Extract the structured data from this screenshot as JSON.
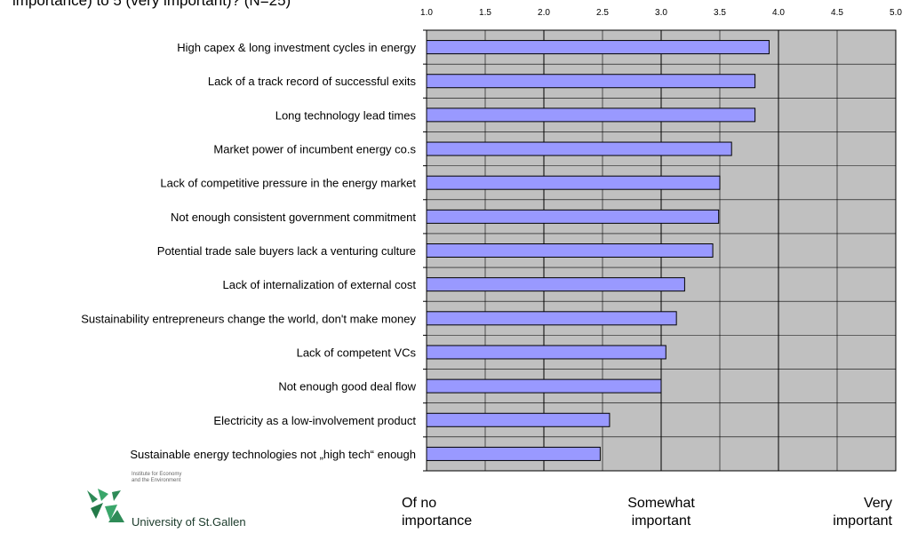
{
  "title_fragment": "importance) to 5 (very important)? (N=25)",
  "chart_data": {
    "type": "bar",
    "orientation": "horizontal",
    "categories": [
      "High capex & long investment cycles in energy",
      "Lack of a track record of successful exits",
      "Long technology lead times",
      "Market power of incumbent energy co.s",
      "Lack of competitive pressure in the energy market",
      "Not enough consistent government commitment",
      "Potential trade sale buyers lack a venturing culture",
      "Lack of internalization of external cost",
      "Sustainability entrepreneurs change the world, don't make money",
      "Lack of competent VCs",
      "Not enough good deal flow",
      "Electricity as a low-involvement product",
      "Sustainable energy technologies not „high tech“ enough"
    ],
    "values": [
      3.92,
      3.8,
      3.8,
      3.6,
      3.5,
      3.49,
      3.44,
      3.2,
      3.13,
      3.04,
      3.0,
      2.56,
      2.48
    ],
    "xlim": [
      1.0,
      5.0
    ],
    "xticks": [
      "1.0",
      "1.5",
      "2.0",
      "2.5",
      "3.0",
      "3.5",
      "4.0",
      "4.5",
      "5.0"
    ],
    "x_axis_position": "top",
    "grid": true,
    "bar_color": "#9999ff",
    "plot_background": "#c0c0c0",
    "scale_labels": [
      {
        "value": 1,
        "lines": [
          "Of no",
          "importance"
        ]
      },
      {
        "value": 3,
        "lines": [
          "Somewhat",
          "important"
        ]
      },
      {
        "value": 5,
        "lines": [
          "Very",
          "important"
        ]
      }
    ]
  },
  "logo": {
    "institute": "Institute for Economy\nand the Environment",
    "name": "University of St.Gallen"
  }
}
